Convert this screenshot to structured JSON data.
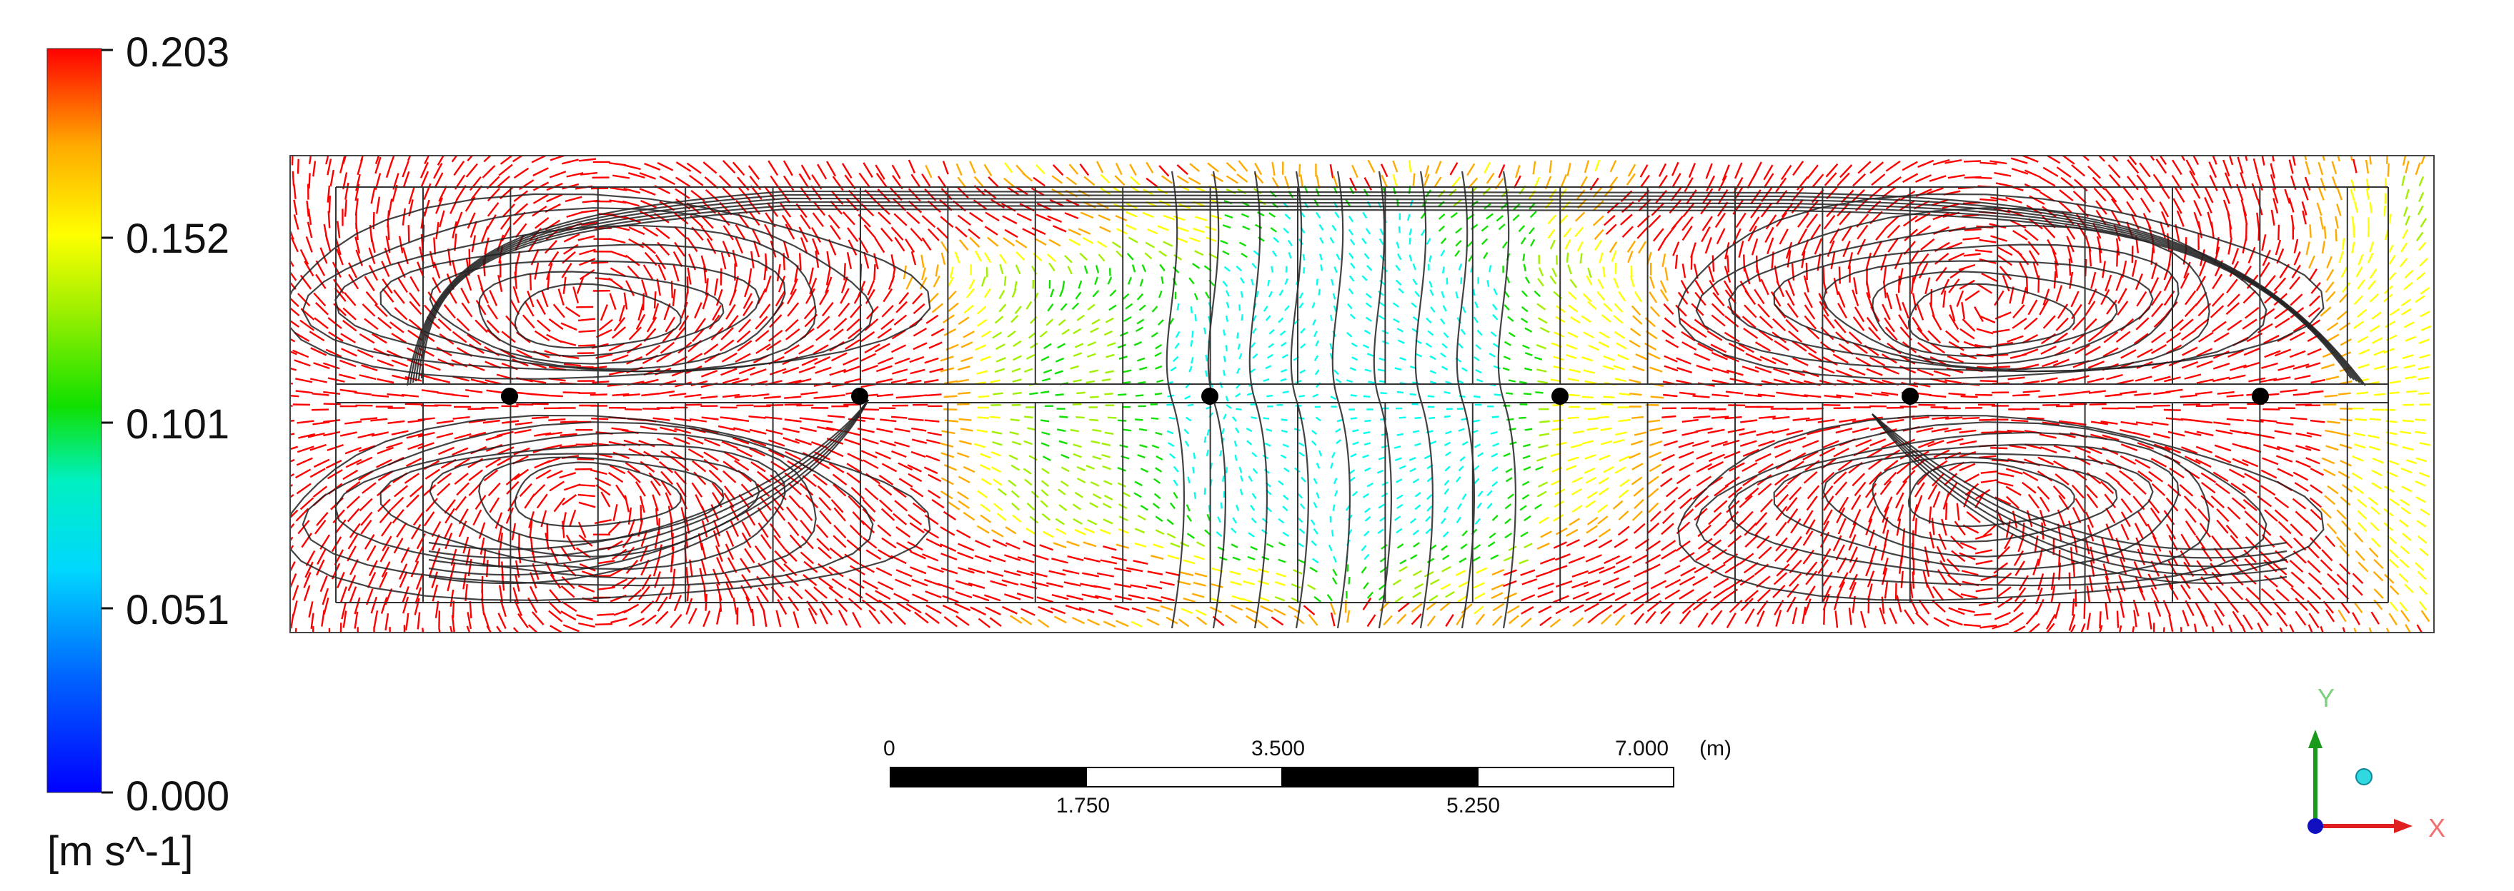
{
  "legend": {
    "max": "0.203",
    "v152": "0.152",
    "v101": "0.101",
    "v051": "0.051",
    "min": "0.000",
    "unit": "[m s^-1]"
  },
  "colormap": [
    "#0000ff",
    "#00b8ff",
    "#00ffee",
    "#10e000",
    "#a0f000",
    "#ffff00",
    "#ffaa00",
    "#ff0000"
  ],
  "field": {
    "max_speed": 0.203,
    "probe_count": 6
  },
  "scale_bar": {
    "label_0": "0",
    "label_3500": "3.500",
    "label_7000": "7.000",
    "unit": "(m)",
    "label_1750": "1.750",
    "label_5250": "5.250"
  },
  "axes": {
    "y": "Y",
    "x": "X",
    "y_color": "#1a9a1a",
    "x_color": "#e02020",
    "z_color": "#1010c0"
  }
}
